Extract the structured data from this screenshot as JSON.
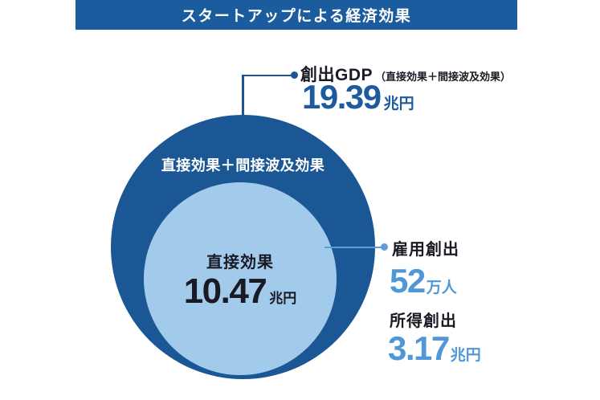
{
  "banner": {
    "title": "スタートアップによる経済効果"
  },
  "gdp": {
    "label": "創出GDP",
    "sublabel": "（直接効果＋間接波及効果）",
    "value": "19.39",
    "unit": "兆円"
  },
  "circles": {
    "outer_label": "直接効果＋間接波及効果",
    "inner_label": "直接効果",
    "inner_value": "10.47",
    "inner_unit": "兆円"
  },
  "employment": {
    "label": "雇用創出",
    "value": "52",
    "unit": "万人"
  },
  "income": {
    "label": "所得創出",
    "value": "3.17",
    "unit": "兆円"
  },
  "colors": {
    "banner_bg": "#1a5c9e",
    "outer_circle": "#1c5795",
    "inner_circle": "#a2cbeb",
    "dark_text": "#1a1a24",
    "dark_blue_number": "#1e5a9e",
    "light_blue_number": "#4f97d6",
    "navy_connector": "#1d5493",
    "light_connector": "#5b9dd8"
  },
  "chart_data": {
    "type": "nested_circles",
    "title": "スタートアップによる経済効果",
    "rings": [
      {
        "label": "直接効果＋間接波及効果",
        "metric": "創出GDP（直接効果＋間接波及効果）",
        "value": 19.39,
        "unit": "兆円"
      },
      {
        "label": "直接効果",
        "metric": "直接効果",
        "value": 10.47,
        "unit": "兆円"
      }
    ],
    "side_metrics": [
      {
        "label": "雇用創出",
        "value": 52,
        "unit": "万人"
      },
      {
        "label": "所得創出",
        "value": 3.17,
        "unit": "兆円"
      }
    ],
    "legend_position": "none",
    "grid": false
  }
}
